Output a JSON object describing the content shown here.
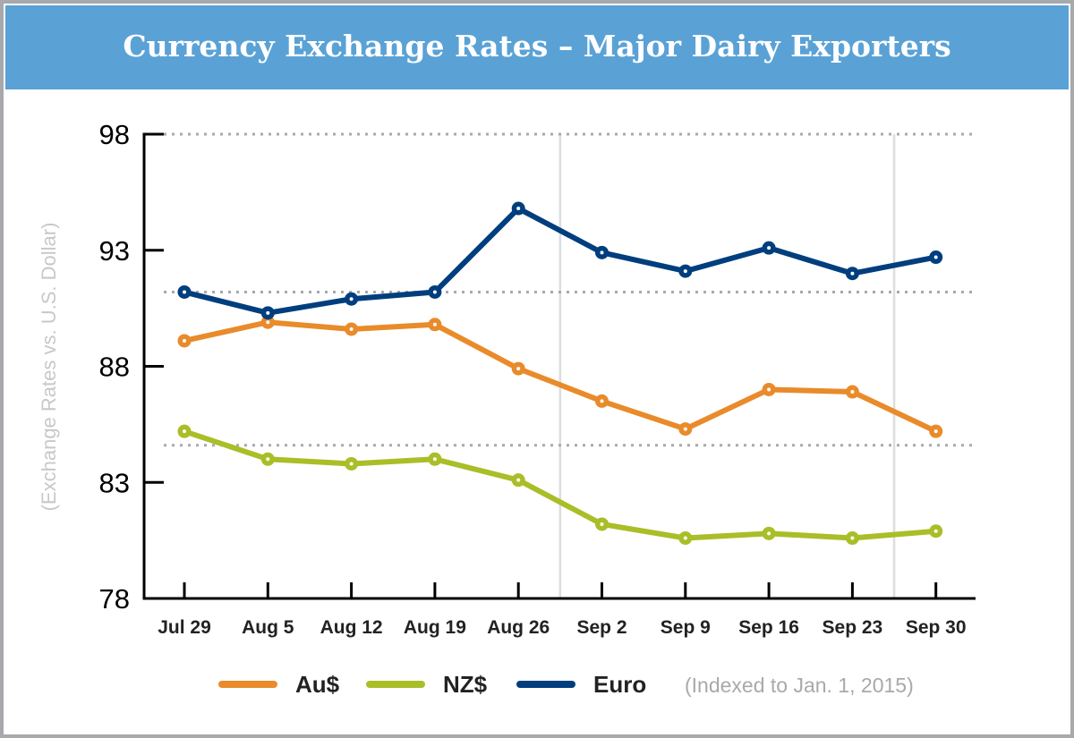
{
  "title": "Currency Exchange Rates – Major Dairy Exporters",
  "chart_data": {
    "type": "line",
    "title": "Currency Exchange Rates – Major Dairy Exporters",
    "ylabel": "(Exchange Rates vs. U.S. Dollar)",
    "xlabel": "",
    "note": "(Indexed to Jan. 1, 2015)",
    "ylim": [
      78,
      98
    ],
    "yticks": [
      98,
      93,
      88,
      83,
      78
    ],
    "reference_lines": [
      98,
      91.2,
      84.6
    ],
    "month_separators_after": [
      "Aug 26",
      "Sep 23"
    ],
    "categories": [
      "Jul 29",
      "Aug 5",
      "Aug 12",
      "Aug 19",
      "Aug 26",
      "Sep 2",
      "Sep 9",
      "Sep 16",
      "Sep 23",
      "Sep 30"
    ],
    "legend_position": "bottom",
    "series": [
      {
        "name": "Au$",
        "color": "#e98b2a",
        "values": [
          89.1,
          89.9,
          89.6,
          89.8,
          87.9,
          86.5,
          85.3,
          87.0,
          86.9,
          85.2
        ]
      },
      {
        "name": "NZ$",
        "color": "#a9be27",
        "values": [
          85.2,
          84.0,
          83.8,
          84.0,
          83.1,
          81.2,
          80.6,
          80.8,
          80.6,
          80.9
        ]
      },
      {
        "name": "Euro",
        "color": "#003e7e",
        "values": [
          91.2,
          90.3,
          90.9,
          91.2,
          94.8,
          92.9,
          92.1,
          93.1,
          92.0,
          92.7
        ]
      }
    ]
  }
}
